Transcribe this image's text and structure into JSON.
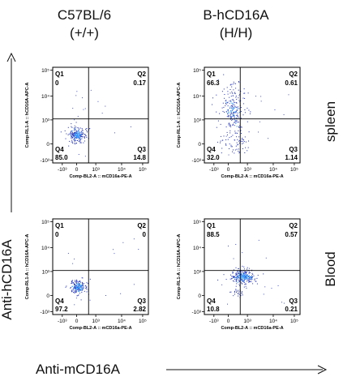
{
  "column_headers": [
    {
      "line1": "C57BL/6",
      "line2": "(+/+)"
    },
    {
      "line1": "B-hCD16A",
      "line2": "(H/H)"
    }
  ],
  "row_labels": [
    "spleen",
    "Blood"
  ],
  "y_title": "Anti-hCD16A",
  "x_title": "Anti-mCD16A",
  "colors": {
    "text": "#111111",
    "dots": "#1f2fb8",
    "dense": "#3aa0ff",
    "gate": "#000000"
  },
  "chart_data": [
    {
      "type": "scatter",
      "panel": "C57BL/6 spleen",
      "xlabel": "Comp-BL2-A :: mCD16a-PE-A",
      "ylabel": "Comp-RL1-A :: hCD16A-APC-A",
      "x_ticks": [
        "-10³",
        "0",
        "10³",
        "10⁴",
        "10⁵"
      ],
      "y_ticks": [
        "10⁵",
        "10⁴",
        "10³",
        "0",
        "-10³"
      ],
      "quadrants": [
        {
          "name": "Q1",
          "value": "0"
        },
        {
          "name": "Q2",
          "value": "0.17"
        },
        {
          "name": "Q3",
          "value": "14.8"
        },
        {
          "name": "Q4",
          "value": "85.0"
        }
      ]
    },
    {
      "type": "scatter",
      "panel": "B-hCD16A spleen",
      "xlabel": "Comp-BL2-A :: mCD16a-PE-A",
      "ylabel": "Comp-RL1-A :: hCD16A-APC-A",
      "x_ticks": [
        "-10³",
        "0",
        "10³",
        "10⁴",
        "10⁵"
      ],
      "y_ticks": [
        "10⁵",
        "10⁴",
        "10³",
        "0",
        "-10³"
      ],
      "quadrants": [
        {
          "name": "Q1",
          "value": "66.3"
        },
        {
          "name": "Q2",
          "value": "0.61"
        },
        {
          "name": "Q3",
          "value": "1.14"
        },
        {
          "name": "Q4",
          "value": "32.0"
        }
      ]
    },
    {
      "type": "scatter",
      "panel": "C57BL/6 Blood",
      "xlabel": "Comp-BL2-A :: mCD16a-PE-A",
      "ylabel": "Comp-RL1-A :: hCD16A-APC-A",
      "x_ticks": [
        "-10³",
        "0",
        "10³",
        "10⁴",
        "10⁵"
      ],
      "y_ticks": [
        "10⁵",
        "10⁴",
        "10³",
        "0",
        "-10³"
      ],
      "quadrants": [
        {
          "name": "Q1",
          "value": "0"
        },
        {
          "name": "Q2",
          "value": "0"
        },
        {
          "name": "Q3",
          "value": "2.82"
        },
        {
          "name": "Q4",
          "value": "97.2"
        }
      ]
    },
    {
      "type": "scatter",
      "panel": "B-hCD16A Blood",
      "xlabel": "Comp-BL2-A :: mCD16a-PE-A",
      "ylabel": "Comp-RL1-A :: hCD16A-APC-A",
      "x_ticks": [
        "-10³",
        "0",
        "10³",
        "10⁴",
        "10⁵"
      ],
      "y_ticks": [
        "10⁵",
        "10⁴",
        "10³",
        "0",
        "-10³"
      ],
      "quadrants": [
        {
          "name": "Q1",
          "value": "88.5"
        },
        {
          "name": "Q2",
          "value": "0.57"
        },
        {
          "name": "Q3",
          "value": "0.21"
        },
        {
          "name": "Q4",
          "value": "10.8"
        }
      ]
    }
  ]
}
